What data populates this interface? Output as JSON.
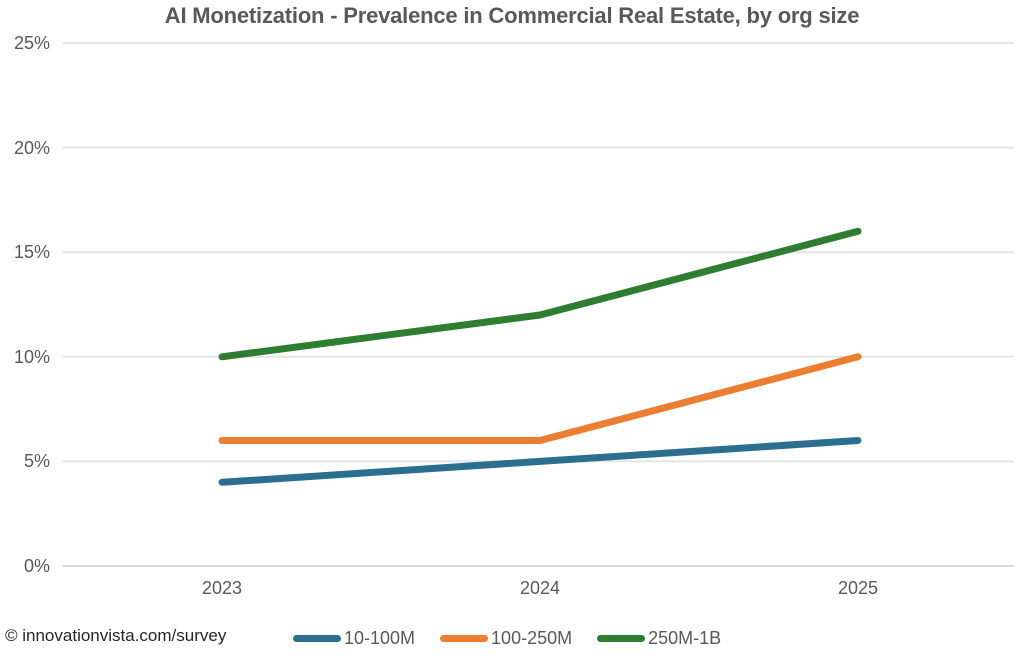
{
  "chart_data": {
    "type": "line",
    "title": "AI Monetization - Prevalence in Commercial Real Estate, by org size",
    "categories": [
      "2023",
      "2024",
      "2025"
    ],
    "series": [
      {
        "name": "10-100M",
        "color": "#2c6e8f",
        "values": [
          4,
          5,
          6
        ]
      },
      {
        "name": "100-250M",
        "color": "#ed7d31",
        "values": [
          6,
          6,
          10
        ]
      },
      {
        "name": "250M-1B",
        "color": "#2e7d31",
        "values": [
          10,
          12,
          16
        ]
      }
    ],
    "xlabel": "",
    "ylabel": "",
    "ylim": [
      0,
      25
    ],
    "ytick_step": 5,
    "ytick_labels": [
      "25%",
      "20%",
      "15%",
      "10%",
      "5%",
      "0%"
    ],
    "grid": "horizontal",
    "legend_position": "bottom",
    "colors": {
      "gridline": "#e4e4e4",
      "baseline": "#d8d8d8",
      "axis_text": "#595959",
      "title_text": "#595959",
      "footer_text": "#262626"
    }
  },
  "footer": {
    "attribution": "© innovationvista.com/survey"
  }
}
